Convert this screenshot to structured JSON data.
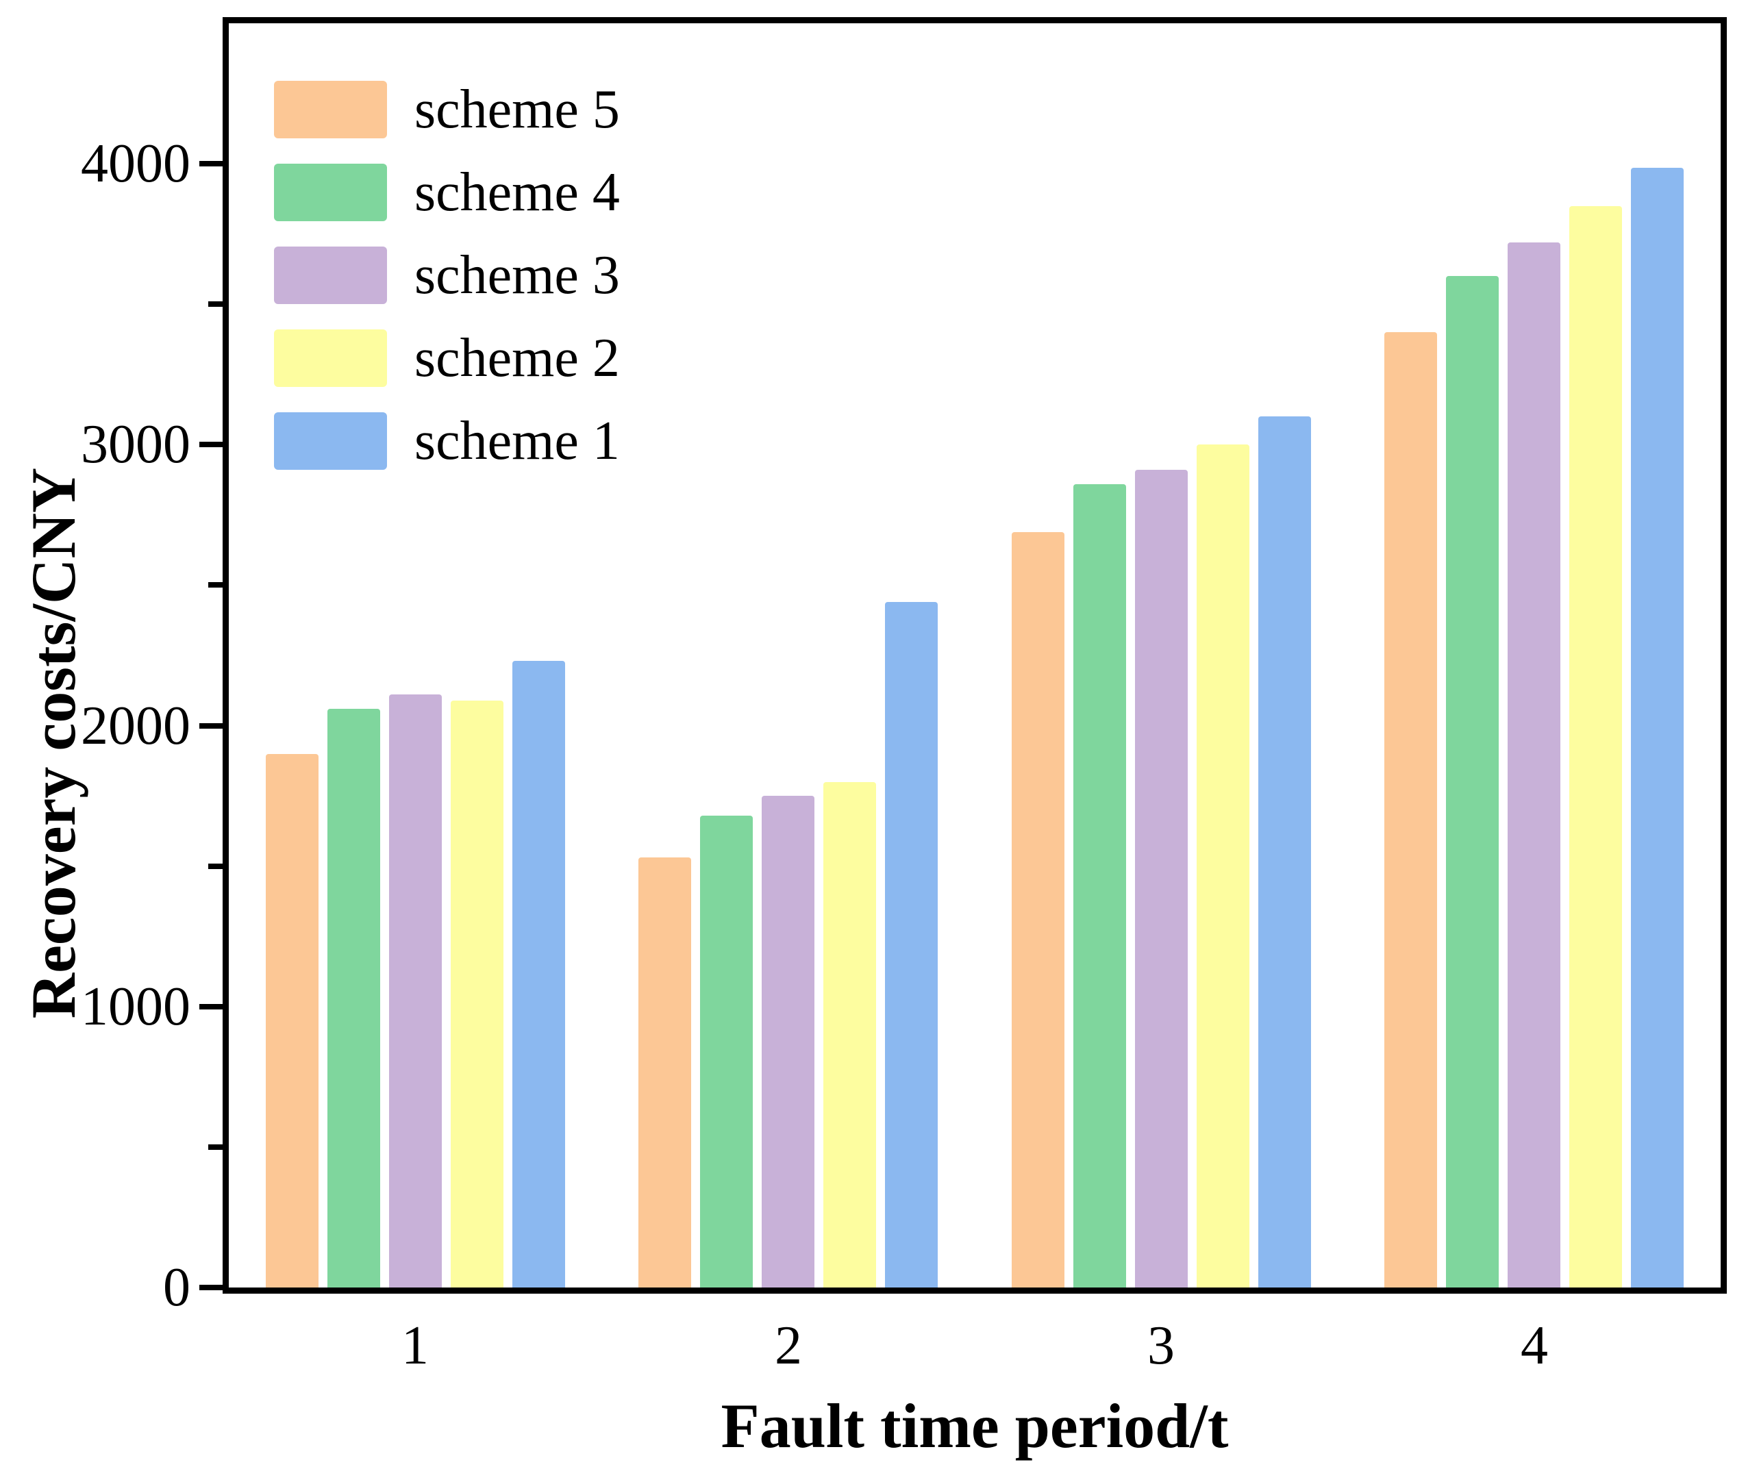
{
  "chart_data": {
    "type": "bar",
    "title": "",
    "xlabel": "Fault time period/t",
    "ylabel": "Recovery costs/CNY",
    "categories": [
      "1",
      "2",
      "3",
      "4"
    ],
    "series": [
      {
        "name": "scheme 5",
        "color": "#FCC795",
        "values": [
          1900,
          1530,
          2690,
          3400
        ]
      },
      {
        "name": "scheme 4",
        "color": "#7FD69D",
        "values": [
          2060,
          1680,
          2860,
          3600
        ]
      },
      {
        "name": "scheme 3",
        "color": "#C8B1D8",
        "values": [
          2110,
          1750,
          2910,
          3720
        ]
      },
      {
        "name": "scheme 2",
        "color": "#FDFD9F",
        "values": [
          2090,
          1800,
          3000,
          3850
        ]
      },
      {
        "name": "scheme 1",
        "color": "#8BB8F0",
        "values": [
          2230,
          2440,
          3100,
          3985
        ]
      }
    ],
    "ylim": [
      0,
      4500
    ],
    "yticks_major": [
      0,
      1000,
      2000,
      3000,
      4000
    ],
    "ytick_labels": [
      "0",
      "1000",
      "2000",
      "3000",
      "4000"
    ],
    "yticks_minor": [
      500,
      1500,
      2500,
      3500
    ],
    "legend_position": "upper-left",
    "legend_entries": [
      "scheme 5",
      "scheme 4",
      "scheme 3",
      "scheme 2",
      "scheme 1"
    ],
    "grid": false,
    "axis_color": "#000000",
    "background_color": "#ffffff"
  }
}
